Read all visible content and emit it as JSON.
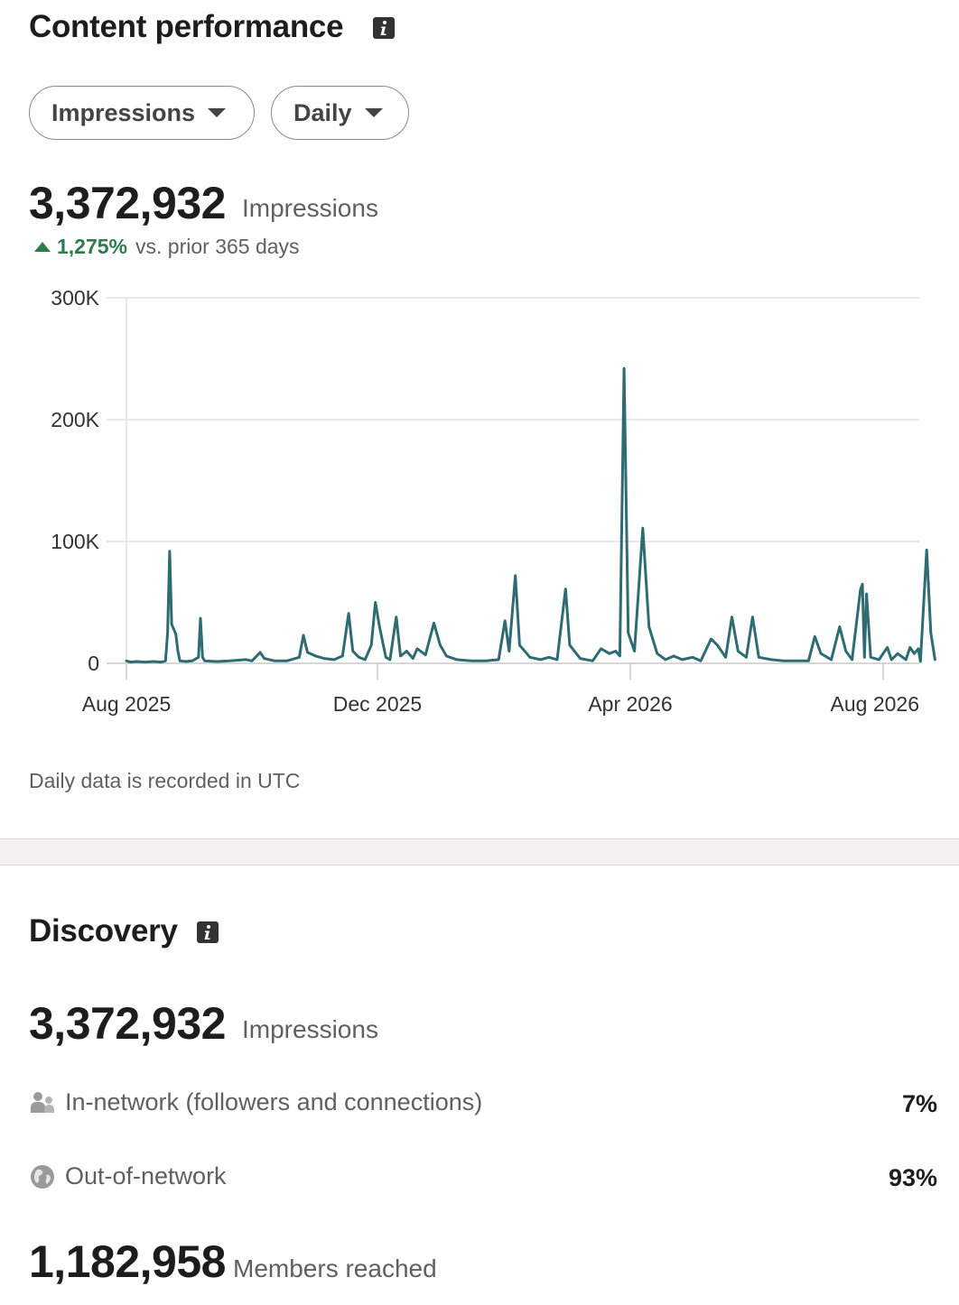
{
  "content_performance": {
    "title": "Content performance",
    "info_icon": "info-icon",
    "metric_dropdown": {
      "selected": "Impressions"
    },
    "period_dropdown": {
      "selected": "Daily"
    },
    "total_value": "3,372,932",
    "total_unit": "Impressions",
    "change_percent": "1,275%",
    "change_label": "vs. prior 365 days",
    "change_direction": "up",
    "note": "Daily data is recorded in UTC"
  },
  "chart_data": {
    "type": "line",
    "title": "",
    "xlabel": "",
    "ylabel": "",
    "ylim": [
      0,
      300000
    ],
    "y_ticks": [
      0,
      100000,
      200000,
      300000
    ],
    "y_tick_labels": [
      "0",
      "100K",
      "200K",
      "300K"
    ],
    "x_tick_labels": [
      "Aug 2025",
      "Dec 2025",
      "Apr 2026",
      "Aug 2026"
    ],
    "x_ticks": [
      "2025-08-01",
      "2025-12-01",
      "2026-04-01",
      "2026-08-01"
    ],
    "grid": true,
    "line_color": "#2e6b72",
    "series": [
      {
        "values": [
          [
            "2025-08-01",
            2000
          ],
          [
            "2025-08-03",
            1000
          ],
          [
            "2025-08-06",
            1500
          ],
          [
            "2025-08-10",
            1000
          ],
          [
            "2025-08-14",
            1500
          ],
          [
            "2025-08-18",
            1000
          ],
          [
            "2025-08-20",
            2000
          ],
          [
            "2025-08-21",
            25000
          ],
          [
            "2025-08-22",
            92000
          ],
          [
            "2025-08-23",
            32000
          ],
          [
            "2025-08-24",
            28000
          ],
          [
            "2025-08-25",
            24000
          ],
          [
            "2025-08-26",
            10000
          ],
          [
            "2025-08-27",
            2000
          ],
          [
            "2025-08-30",
            1500
          ],
          [
            "2025-09-02",
            2000
          ],
          [
            "2025-09-05",
            5000
          ],
          [
            "2025-09-06",
            37000
          ],
          [
            "2025-09-07",
            5000
          ],
          [
            "2025-09-08",
            2000
          ],
          [
            "2025-09-14",
            1500
          ],
          [
            "2025-09-20",
            2000
          ],
          [
            "2025-09-28",
            3000
          ],
          [
            "2025-10-01",
            2000
          ],
          [
            "2025-10-05",
            9000
          ],
          [
            "2025-10-07",
            4000
          ],
          [
            "2025-10-12",
            2000
          ],
          [
            "2025-10-18",
            2000
          ],
          [
            "2025-10-24",
            5000
          ],
          [
            "2025-10-26",
            23000
          ],
          [
            "2025-10-28",
            9000
          ],
          [
            "2025-11-01",
            6000
          ],
          [
            "2025-11-05",
            4000
          ],
          [
            "2025-11-10",
            3000
          ],
          [
            "2025-11-14",
            6000
          ],
          [
            "2025-11-17",
            41000
          ],
          [
            "2025-11-19",
            10000
          ],
          [
            "2025-11-22",
            5000
          ],
          [
            "2025-11-25",
            3000
          ],
          [
            "2025-11-28",
            15000
          ],
          [
            "2025-11-30",
            50000
          ],
          [
            "2025-12-02",
            30000
          ],
          [
            "2025-12-05",
            5000
          ],
          [
            "2025-12-07",
            3000
          ],
          [
            "2025-12-10",
            38000
          ],
          [
            "2025-12-12",
            6000
          ],
          [
            "2025-12-15",
            10000
          ],
          [
            "2025-12-18",
            4000
          ],
          [
            "2025-12-20",
            12000
          ],
          [
            "2025-12-24",
            7000
          ],
          [
            "2025-12-28",
            33000
          ],
          [
            "2025-12-31",
            15000
          ],
          [
            "2026-01-03",
            6000
          ],
          [
            "2026-01-08",
            3000
          ],
          [
            "2026-01-15",
            2000
          ],
          [
            "2026-01-22",
            2000
          ],
          [
            "2026-01-28",
            3000
          ],
          [
            "2026-01-31",
            35000
          ],
          [
            "2026-02-02",
            10000
          ],
          [
            "2026-02-05",
            72000
          ],
          [
            "2026-02-07",
            15000
          ],
          [
            "2026-02-12",
            5000
          ],
          [
            "2026-02-17",
            3000
          ],
          [
            "2026-02-21",
            5000
          ],
          [
            "2026-02-25",
            3000
          ],
          [
            "2026-03-01",
            61000
          ],
          [
            "2026-03-03",
            15000
          ],
          [
            "2026-03-08",
            4000
          ],
          [
            "2026-03-14",
            2000
          ],
          [
            "2026-03-18",
            12000
          ],
          [
            "2026-03-22",
            8000
          ],
          [
            "2026-03-25",
            10000
          ],
          [
            "2026-03-27",
            6000
          ],
          [
            "2026-03-29",
            242000
          ],
          [
            "2026-03-31",
            25000
          ],
          [
            "2026-04-03",
            10000
          ],
          [
            "2026-04-07",
            111000
          ],
          [
            "2026-04-10",
            30000
          ],
          [
            "2026-04-14",
            8000
          ],
          [
            "2026-04-18",
            3000
          ],
          [
            "2026-04-22",
            6000
          ],
          [
            "2026-04-26",
            3000
          ],
          [
            "2026-05-01",
            5000
          ],
          [
            "2026-05-05",
            2000
          ],
          [
            "2026-05-10",
            20000
          ],
          [
            "2026-05-13",
            15000
          ],
          [
            "2026-05-17",
            5000
          ],
          [
            "2026-05-20",
            38000
          ],
          [
            "2026-05-23",
            10000
          ],
          [
            "2026-05-27",
            5000
          ],
          [
            "2026-05-30",
            38000
          ],
          [
            "2026-06-02",
            5000
          ],
          [
            "2026-06-08",
            3000
          ],
          [
            "2026-06-14",
            2000
          ],
          [
            "2026-06-20",
            2000
          ],
          [
            "2026-06-26",
            2000
          ],
          [
            "2026-06-29",
            22000
          ],
          [
            "2026-07-02",
            8000
          ],
          [
            "2026-07-07",
            3000
          ],
          [
            "2026-07-11",
            30000
          ],
          [
            "2026-07-14",
            10000
          ],
          [
            "2026-07-17",
            3000
          ],
          [
            "2026-07-21",
            60000
          ],
          [
            "2026-07-22",
            65000
          ],
          [
            "2026-07-23",
            5000
          ],
          [
            "2026-07-24",
            57000
          ],
          [
            "2026-07-26",
            5000
          ],
          [
            "2026-07-30",
            3000
          ],
          [
            "2026-08-03",
            13000
          ],
          [
            "2026-08-05",
            3000
          ],
          [
            "2026-08-08",
            8000
          ],
          [
            "2026-08-12",
            3000
          ],
          [
            "2026-08-14",
            13000
          ],
          [
            "2026-08-16",
            8000
          ],
          [
            "2026-08-18",
            12000
          ],
          [
            "2026-08-19",
            1500
          ],
          [
            "2026-08-22",
            93000
          ],
          [
            "2026-08-24",
            25000
          ],
          [
            "2026-08-26",
            3000
          ]
        ]
      }
    ]
  },
  "discovery": {
    "title": "Discovery",
    "info_icon": "info-icon",
    "total_value": "3,372,932",
    "total_unit": "Impressions",
    "breakdown": [
      {
        "label": "In-network (followers and connections)",
        "value": "7%",
        "icon": "people-icon"
      },
      {
        "label": "Out-of-network",
        "value": "93%",
        "icon": "globe-icon"
      }
    ],
    "members_value": "1,182,958",
    "members_label": "Members reached"
  }
}
